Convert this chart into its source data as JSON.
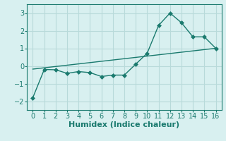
{
  "title": "",
  "xlabel": "Humidex (Indice chaleur)",
  "xlim": [
    -0.5,
    16.5
  ],
  "ylim": [
    -2.5,
    3.5
  ],
  "yticks": [
    -2,
    -1,
    0,
    1,
    2,
    3
  ],
  "xticks": [
    0,
    1,
    2,
    3,
    4,
    5,
    6,
    7,
    8,
    9,
    10,
    11,
    12,
    13,
    14,
    15,
    16
  ],
  "line1_x": [
    0,
    1,
    2,
    3,
    4,
    5,
    6,
    7,
    8,
    9,
    10,
    11,
    12,
    13,
    14,
    15,
    16
  ],
  "line1_y": [
    -1.8,
    -0.2,
    -0.22,
    -0.42,
    -0.32,
    -0.38,
    -0.6,
    -0.52,
    -0.52,
    0.1,
    0.72,
    2.3,
    3.0,
    2.45,
    1.65,
    1.65,
    1.0
  ],
  "line2_x": [
    0,
    16
  ],
  "line2_y": [
    -0.18,
    1.0
  ],
  "line_color": "#1a7a6e",
  "bg_color": "#d8f0f0",
  "grid_color": "#b8dada",
  "tick_fontsize": 7,
  "xlabel_fontsize": 8,
  "marker_size": 3,
  "linewidth": 1.0
}
